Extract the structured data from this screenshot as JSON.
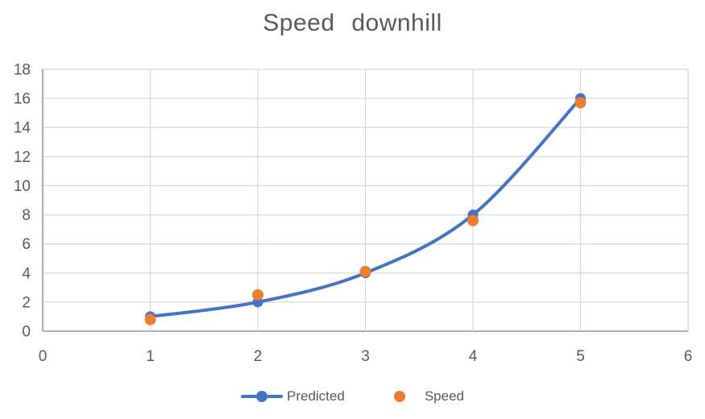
{
  "page": {
    "background": "#FFFFFF"
  },
  "chart_data": {
    "type": "line",
    "title": "Speed downhill",
    "x": [
      1,
      2,
      3,
      4,
      5
    ],
    "series": [
      {
        "name": "Predicted",
        "style": "smooth-line-with-round-markers",
        "color": "#4472C4",
        "values": [
          1,
          2,
          4,
          8,
          16
        ]
      },
      {
        "name": "Speed",
        "style": "scatter-round-markers",
        "color": "#ED7D31",
        "values": [
          0.8,
          2.5,
          4.1,
          7.6,
          15.7
        ]
      }
    ],
    "xlim": [
      0,
      6
    ],
    "ylim": [
      0,
      18
    ],
    "x_ticks": [
      0,
      1,
      2,
      3,
      4,
      5,
      6
    ],
    "y_ticks": [
      0,
      2,
      4,
      6,
      8,
      10,
      12,
      14,
      16,
      18
    ],
    "grid": true,
    "legend_position": "bottom-center",
    "colors": {
      "title_text": "#595959",
      "tick_text": "#595959",
      "gridline": "#D9D9D9",
      "axis_line": "#AFAFAF",
      "background": "#FFFFFF"
    }
  }
}
